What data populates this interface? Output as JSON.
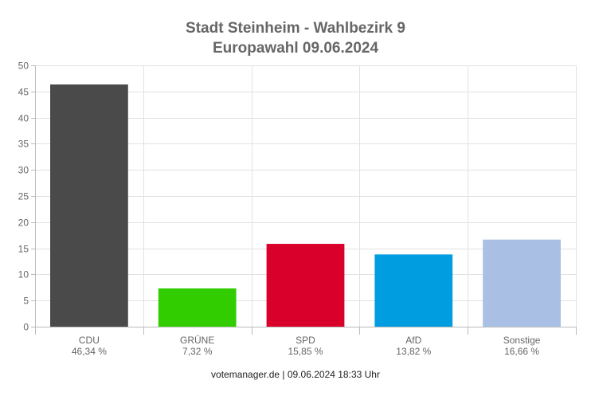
{
  "chart_data": {
    "type": "bar",
    "title": "Stadt Steinheim - Wahlbezirk 9",
    "subtitle": "Europawahl 09.06.2024",
    "categories": [
      "CDU",
      "GRÜNE",
      "SPD",
      "AfD",
      "Sonstige"
    ],
    "category_values_text": [
      "46,34 %",
      "7,32 %",
      "15,85 %",
      "13,82 %",
      "16,66 %"
    ],
    "values": [
      46.34,
      7.32,
      15.85,
      13.82,
      16.66
    ],
    "colors": [
      "#4a4a4a",
      "#32cd00",
      "#d9002b",
      "#009ee0",
      "#aabfe4"
    ],
    "ylim": [
      0,
      50
    ],
    "yticks": [
      "0",
      "5",
      "10",
      "15",
      "20",
      "25",
      "30",
      "35",
      "40",
      "45",
      "50"
    ],
    "grid": true,
    "legend": "none"
  },
  "footer": "votemanager.de | 09.06.2024 18:33 Uhr"
}
